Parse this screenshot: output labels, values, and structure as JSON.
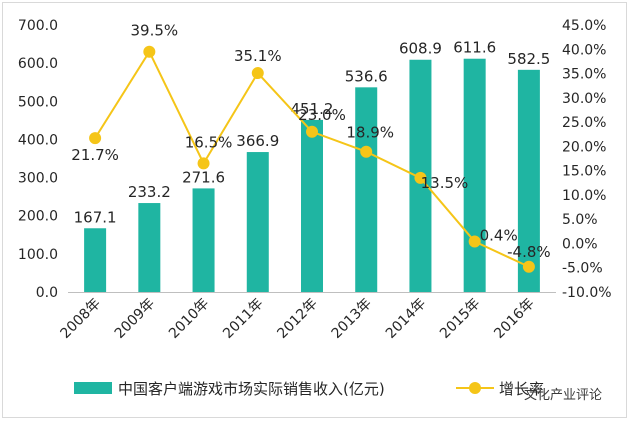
{
  "chart_data": {
    "type": "bar",
    "title": "",
    "categories": [
      "2008年",
      "2009年",
      "2010年",
      "2011年",
      "2012年",
      "2013年",
      "2014年",
      "2015年",
      "2016年"
    ],
    "series": [
      {
        "name": "中国客户端游戏市场实际销售收入(亿元)",
        "type": "bar",
        "axis": "left",
        "color": "#1fb5a2",
        "values": [
          167.1,
          233.2,
          271.6,
          366.9,
          451.2,
          536.6,
          608.9,
          611.6,
          582.5
        ],
        "labels": [
          "167.1",
          "233.2",
          "271.6",
          "366.9",
          "451.2",
          "536.6",
          "608.9",
          "611.6",
          "582.5"
        ]
      },
      {
        "name": "增长率",
        "type": "line",
        "axis": "right",
        "color": "#f5c518",
        "values": [
          21.7,
          39.5,
          16.5,
          35.1,
          23.0,
          18.9,
          13.5,
          0.4,
          -4.8
        ],
        "labels": [
          "21.7%",
          "39.5%",
          "16.5%",
          "35.1%",
          "23.0%",
          "18.9%",
          "13.5%",
          "0.4%",
          "-4.8%"
        ]
      }
    ],
    "y_left": {
      "range": [
        0,
        700
      ],
      "ticks": [
        0,
        100,
        200,
        300,
        400,
        500,
        600,
        700
      ],
      "tick_labels": [
        "0.0",
        "100.0",
        "200.0",
        "300.0",
        "400.0",
        "500.0",
        "600.0",
        "700.0"
      ]
    },
    "y_right": {
      "range": [
        -10,
        45
      ],
      "ticks": [
        -10,
        -5,
        0,
        5,
        10,
        15,
        20,
        25,
        30,
        35,
        40,
        45
      ],
      "tick_labels": [
        "-10.0%",
        "-5.0%",
        "0.0%",
        "5.0%",
        "10.0%",
        "15.0%",
        "20.0%",
        "25.0%",
        "30.0%",
        "35.0%",
        "40.0%",
        "45.0%"
      ]
    },
    "grid": false,
    "legend": "bottom"
  },
  "watermark": "文化产业评论"
}
